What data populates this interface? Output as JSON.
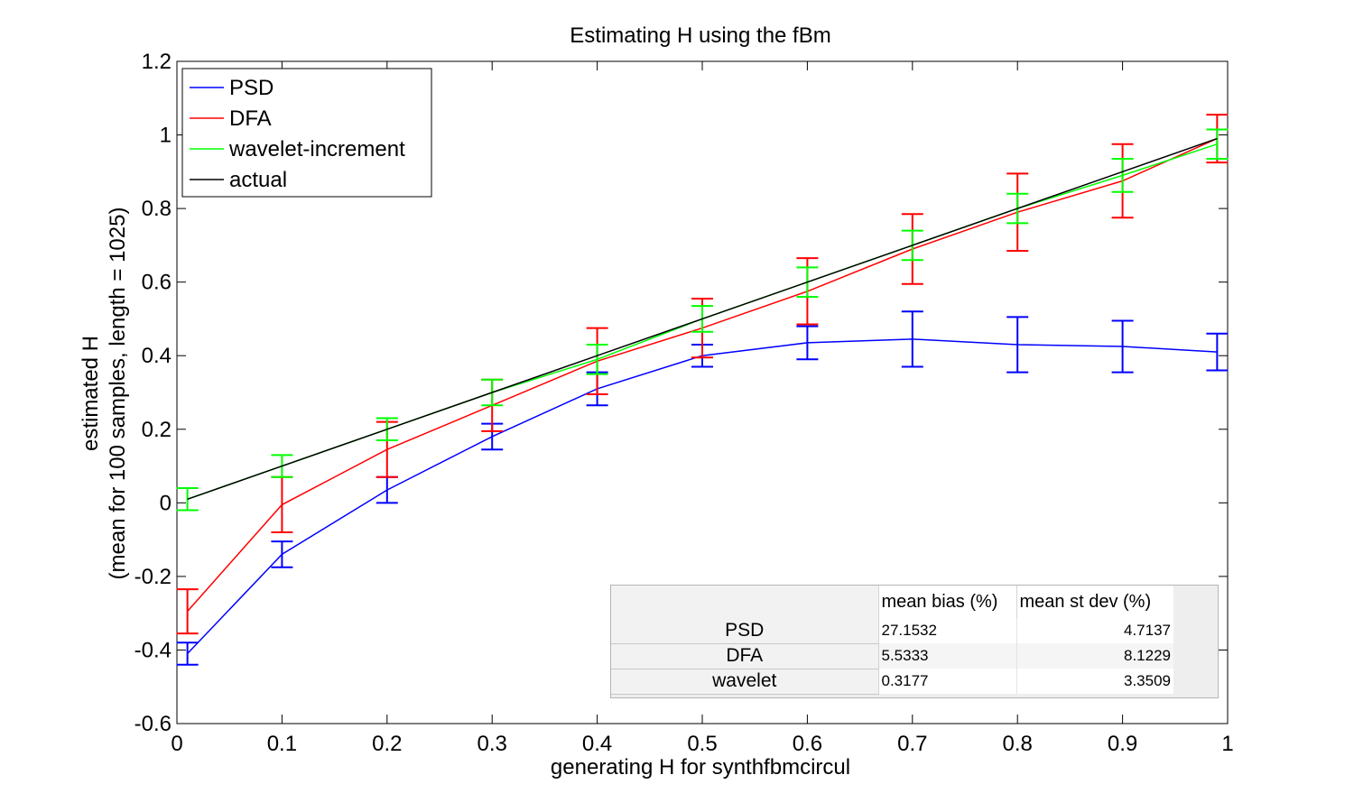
{
  "chart_data": {
    "type": "line",
    "title": "Estimating H using the fBm",
    "xlabel": "generating H for synthfbmcircul",
    "ylabel_line1": "estimated H",
    "ylabel_line2": "(mean for 100 samples, length = 1025)",
    "xlim": [
      0,
      1
    ],
    "ylim": [
      -0.6,
      1.2
    ],
    "xticks": [
      0,
      0.1,
      0.2,
      0.3,
      0.4,
      0.5,
      0.6,
      0.7,
      0.8,
      0.9,
      1
    ],
    "xtick_labels": [
      "0",
      "0.1",
      "0.2",
      "0.3",
      "0.4",
      "0.5",
      "0.6",
      "0.7",
      "0.8",
      "0.9",
      "1"
    ],
    "yticks": [
      -0.6,
      -0.4,
      -0.2,
      0,
      0.2,
      0.4,
      0.6,
      0.8,
      1,
      1.2
    ],
    "ytick_labels": [
      "-0.6",
      "-0.4",
      "-0.2",
      "0",
      "0.2",
      "0.4",
      "0.6",
      "0.8",
      "1",
      "1.2"
    ],
    "grid": false,
    "legend_position": "top-left",
    "x": [
      0.01,
      0.1,
      0.2,
      0.3,
      0.4,
      0.5,
      0.6,
      0.7,
      0.8,
      0.9,
      0.99
    ],
    "series": [
      {
        "name": "PSD",
        "color": "#0000ff",
        "values": [
          -0.41,
          -0.14,
          0.035,
          0.18,
          0.31,
          0.4,
          0.435,
          0.445,
          0.43,
          0.425,
          0.41
        ],
        "errors": [
          0.03,
          0.035,
          0.035,
          0.035,
          0.045,
          0.03,
          0.045,
          0.075,
          0.075,
          0.07,
          0.05
        ]
      },
      {
        "name": "DFA",
        "color": "#ff0000",
        "values": [
          -0.295,
          -0.005,
          0.145,
          0.265,
          0.385,
          0.475,
          0.575,
          0.69,
          0.79,
          0.875,
          0.99
        ],
        "errors": [
          0.06,
          0.075,
          0.075,
          0.07,
          0.09,
          0.08,
          0.09,
          0.095,
          0.105,
          0.1,
          0.065
        ]
      },
      {
        "name": "wavelet-increment",
        "color": "#00ff00",
        "values": [
          0.01,
          0.1,
          0.2,
          0.3,
          0.39,
          0.5,
          0.6,
          0.7,
          0.8,
          0.89,
          0.975
        ],
        "errors": [
          0.03,
          0.03,
          0.03,
          0.035,
          0.04,
          0.035,
          0.04,
          0.04,
          0.04,
          0.045,
          0.04
        ]
      },
      {
        "name": "actual",
        "color": "#000000",
        "values": [
          0.01,
          0.1,
          0.2,
          0.3,
          0.4,
          0.5,
          0.6,
          0.7,
          0.8,
          0.9,
          0.99
        ]
      }
    ]
  },
  "stats_table": {
    "columns": [
      "mean bias (%)",
      "mean st dev (%)"
    ],
    "rows": [
      {
        "label": "PSD",
        "bias": "27.1532",
        "stdev": "4.7137"
      },
      {
        "label": "DFA",
        "bias": "5.5333",
        "stdev": "8.1229"
      },
      {
        "label": "wavelet",
        "bias": "0.3177",
        "stdev": "3.3509"
      }
    ]
  }
}
